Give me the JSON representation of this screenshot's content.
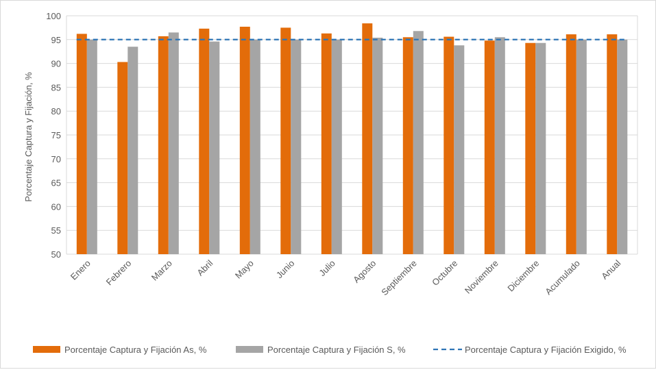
{
  "chart_data": {
    "type": "bar",
    "title": "",
    "xlabel": "",
    "ylabel": "Porcentaje Captura y Fijación, %",
    "ylim": [
      50,
      100
    ],
    "yticks": [
      50,
      55,
      60,
      65,
      70,
      75,
      80,
      85,
      90,
      95,
      100
    ],
    "grid": true,
    "legend_position": "bottom",
    "categories": [
      "Enero",
      "Febrero",
      "Marzo",
      "Abril",
      "Mayo",
      "Junio",
      "Julio",
      "Agosto",
      "Septiembre",
      "Octubre",
      "Noviembre",
      "Diciembre",
      "Acumulado",
      "Anual"
    ],
    "series": [
      {
        "name": "Porcentaje Captura y Fijación As, %",
        "kind": "bar",
        "color": "#E36C0A",
        "values": [
          96.2,
          90.3,
          95.7,
          97.3,
          97.7,
          97.5,
          96.3,
          98.4,
          95.5,
          95.6,
          94.8,
          94.3,
          96.1,
          96.1
        ]
      },
      {
        "name": "Porcentaje Captura y Fijación S, %",
        "kind": "bar",
        "color": "#A5A5A5",
        "values": [
          95.0,
          93.5,
          96.5,
          94.6,
          95.0,
          95.0,
          95.0,
          95.4,
          96.8,
          93.8,
          95.5,
          94.3,
          95.0,
          95.0
        ]
      },
      {
        "name": "Porcentaje Captura y Fijación Exigido, %",
        "kind": "line",
        "style": "dashed",
        "color": "#2E75B6",
        "value": 95
      }
    ]
  }
}
